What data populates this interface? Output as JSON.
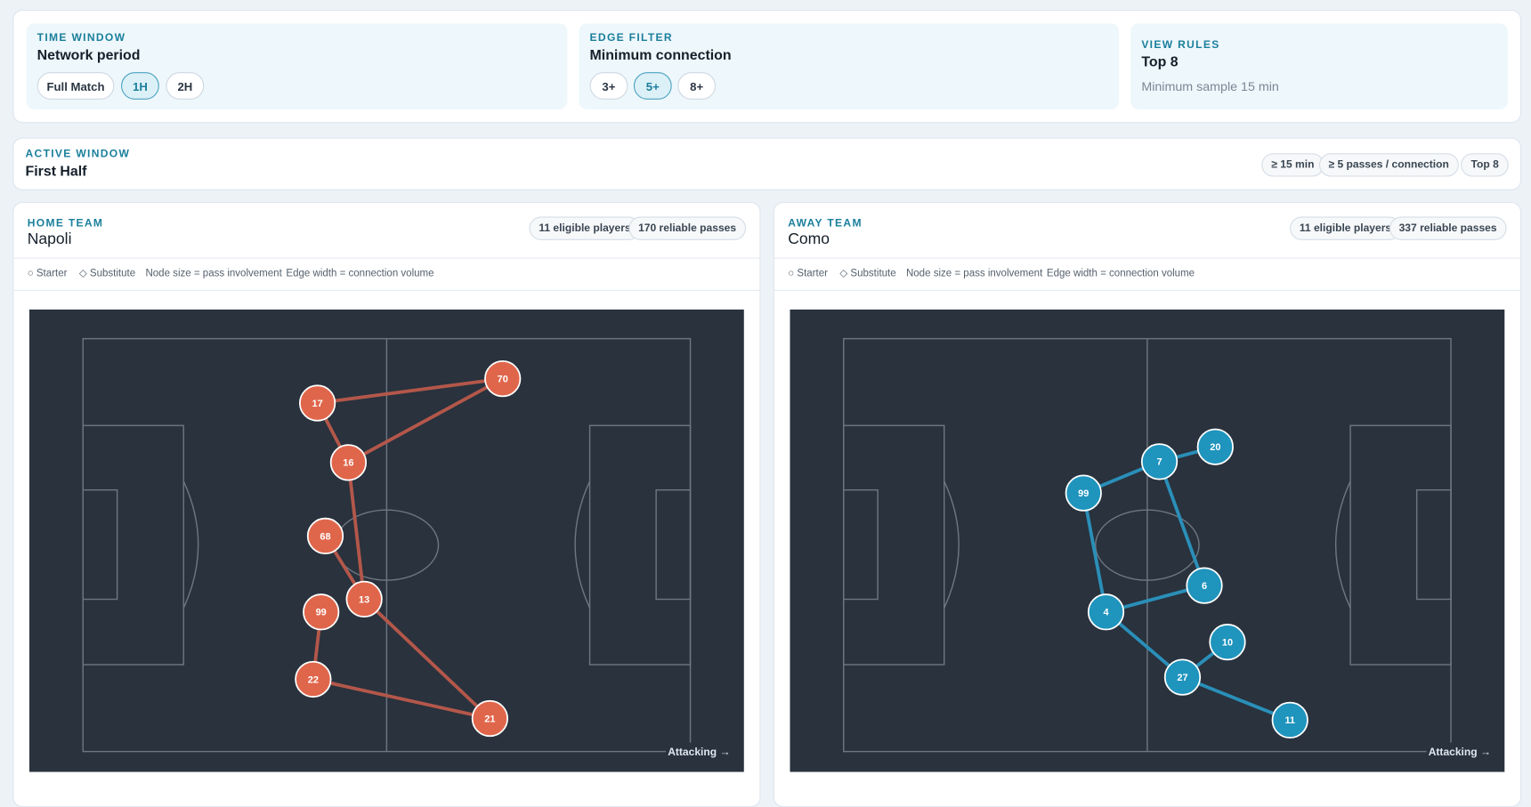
{
  "controls": {
    "time_window": {
      "label": "TIME WINDOW",
      "title": "Network period",
      "options": [
        "Full Match",
        "1H",
        "2H"
      ]
    },
    "edge_filter": {
      "label": "EDGE FILTER",
      "title": "Minimum connection",
      "options": [
        "3+",
        "5+",
        "8+"
      ]
    },
    "view_rules": {
      "label": "VIEW RULES",
      "title": "Top 8",
      "note": "Minimum sample 15 min"
    }
  },
  "active_window": {
    "label": "ACTIVE WINDOW",
    "title": "First Half",
    "chips": [
      "≥ 15 min",
      "≥ 5 passes / connection",
      "Top 8"
    ]
  },
  "legend": [
    "○ Starter",
    "◇ Substitute",
    "Node size = pass involvement",
    "Edge width = connection volume"
  ],
  "attacking": "Attacking →",
  "teams": [
    {
      "label": "HOME TEAM",
      "name": "Napoli",
      "chips": [
        "11 eligible players",
        "170 reliable passes"
      ],
      "color": "#e0664b",
      "edge_color": "#b3574a",
      "nodes": [
        {
          "label": 17,
          "x": 38.6,
          "y": 15.6
        },
        {
          "label": 70,
          "x": 69.1,
          "y": 9.7
        },
        {
          "label": 16,
          "x": 43.7,
          "y": 30.0
        },
        {
          "label": 68,
          "x": 39.9,
          "y": 47.8
        },
        {
          "label": 13,
          "x": 46.3,
          "y": 63.1
        },
        {
          "label": 99,
          "x": 39.2,
          "y": 66.2
        },
        {
          "label": 22,
          "x": 37.9,
          "y": 82.5
        },
        {
          "label": 21,
          "x": 67.0,
          "y": 92.0
        }
      ],
      "edges": [
        [
          0,
          1
        ],
        [
          0,
          2
        ],
        [
          2,
          1
        ],
        [
          2,
          4
        ],
        [
          3,
          4
        ],
        [
          5,
          6
        ],
        [
          6,
          7
        ],
        [
          4,
          7
        ]
      ]
    },
    {
      "label": "AWAY TEAM",
      "name": "Como",
      "chips": [
        "11 eligible players",
        "337 reliable passes"
      ],
      "color": "#1f94bd",
      "edge_color": "#2a8fb8",
      "nodes": [
        {
          "label": 20,
          "x": 61.2,
          "y": 26.2
        },
        {
          "label": 7,
          "x": 52.0,
          "y": 29.8
        },
        {
          "label": 99,
          "x": 39.5,
          "y": 37.4
        },
        {
          "label": 6,
          "x": 59.4,
          "y": 59.8
        },
        {
          "label": 4,
          "x": 43.2,
          "y": 66.2
        },
        {
          "label": 10,
          "x": 63.2,
          "y": 73.5
        },
        {
          "label": 27,
          "x": 55.8,
          "y": 82.0
        },
        {
          "label": 11,
          "x": 73.5,
          "y": 92.4
        }
      ],
      "edges": [
        [
          1,
          0
        ],
        [
          1,
          2
        ],
        [
          1,
          3
        ],
        [
          2,
          4
        ],
        [
          4,
          3
        ],
        [
          4,
          6
        ],
        [
          6,
          5
        ],
        [
          6,
          7
        ]
      ]
    }
  ]
}
